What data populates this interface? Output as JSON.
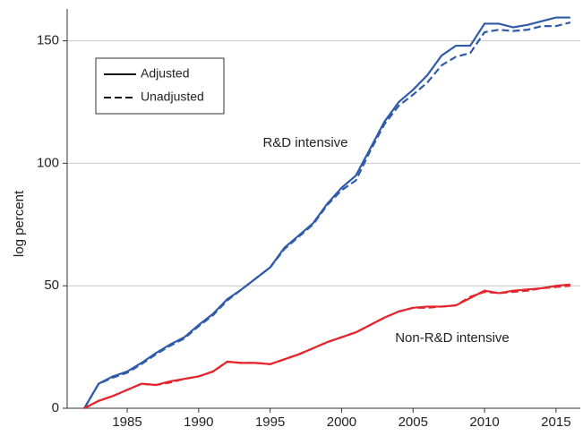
{
  "chart_data": {
    "type": "line",
    "y_label": "log percent",
    "x": [
      1982,
      1983,
      1984,
      1985,
      1986,
      1987,
      1988,
      1989,
      1990,
      1991,
      1992,
      1993,
      1994,
      1995,
      1996,
      1997,
      1998,
      1999,
      2000,
      2001,
      2002,
      2003,
      2004,
      2005,
      2006,
      2007,
      2008,
      2009,
      2010,
      2011,
      2012,
      2013,
      2014,
      2015,
      2016
    ],
    "series": [
      {
        "color": "#2f5ba8",
        "dash": "solid",
        "values": [
          0,
          10,
          13,
          15,
          18.5,
          22.5,
          26,
          29,
          34,
          38.5,
          44.5,
          48.5,
          53,
          57.5,
          65.5,
          70.5,
          75.5,
          83.5,
          90,
          95,
          106,
          117,
          125,
          130,
          136,
          144,
          148,
          148,
          157,
          157,
          155.5,
          156.5,
          158,
          159.5,
          159.5
        ]
      },
      {
        "color": "#2f5ba8",
        "dash": "dashed",
        "values": [
          0,
          10,
          12.5,
          14.5,
          18,
          22,
          25.5,
          28.5,
          33.5,
          38,
          44,
          48.5,
          53,
          57.5,
          65,
          70,
          75,
          83,
          89,
          93,
          105,
          116,
          123.5,
          128,
          133,
          140,
          143.5,
          145,
          153.5,
          154.5,
          154,
          154.5,
          156,
          156,
          157.5
        ]
      },
      {
        "color": "#e3262d",
        "dash": "solid",
        "values": [
          0,
          3,
          5,
          7.5,
          10,
          9.5,
          11,
          12,
          13,
          15,
          19,
          18.5,
          18.5,
          18,
          20,
          22,
          24.5,
          27,
          29,
          31,
          34,
          37,
          39.5,
          41,
          41.5,
          41.5,
          42,
          45,
          48,
          47,
          48,
          48.5,
          49,
          50,
          50.5
        ]
      },
      {
        "color": "#e3262d",
        "dash": "dashed",
        "values": [
          0,
          3,
          5,
          7.5,
          10,
          9.5,
          10.5,
          12,
          13,
          15,
          19,
          18.5,
          18.5,
          18,
          20,
          22,
          24.5,
          27,
          29,
          31,
          34,
          37,
          39.5,
          41,
          41,
          41.5,
          42,
          45.5,
          47.5,
          47,
          47.5,
          48,
          49,
          49.5,
          50
        ]
      }
    ],
    "legend": [
      {
        "label": "Adjusted",
        "dash": "solid"
      },
      {
        "label": "Unadjusted",
        "dash": "dashed"
      }
    ],
    "annotations": [
      "R&D intensive",
      "Non-R&D intensive"
    ],
    "xlim": [
      1980.8,
      2016.7
    ],
    "ylim": [
      0,
      163
    ],
    "xticks": [
      1985,
      1990,
      1995,
      2000,
      2005,
      2010,
      2015
    ],
    "yticks": [
      0,
      50,
      100,
      150
    ],
    "grid": true
  }
}
